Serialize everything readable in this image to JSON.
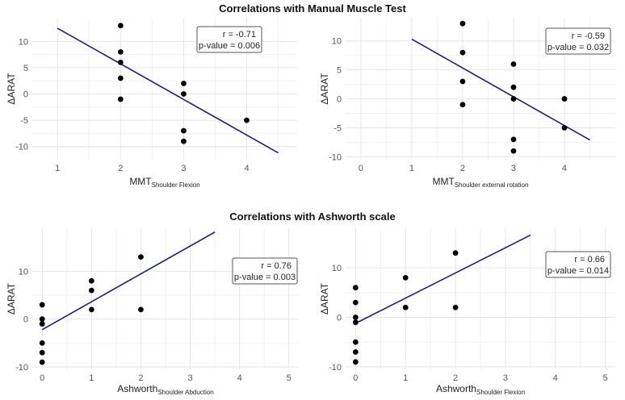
{
  "sections": [
    {
      "title": "Correlations with Manual Muscle Test"
    },
    {
      "title": "Correlations with Ashworth scale"
    }
  ],
  "colors": {
    "line": "#1f1f7a",
    "point": "#000000",
    "grid": "#e6e6e6",
    "box_border": "#555555"
  },
  "chart_data": [
    {
      "type": "scatter",
      "ylabel": "ΔARAT",
      "xlabel_main": "MMT",
      "xlabel_sub": "Shoulder Flexion",
      "xlim": [
        0.6,
        4.8
      ],
      "ylim": [
        -12.5,
        14.5
      ],
      "xticks": [
        1,
        2,
        3,
        4
      ],
      "yticks": [
        -10,
        -5,
        0,
        5,
        10
      ],
      "points": [
        [
          2,
          13
        ],
        [
          2,
          8
        ],
        [
          2,
          6
        ],
        [
          2,
          3
        ],
        [
          2,
          -1
        ],
        [
          3,
          2
        ],
        [
          3,
          0
        ],
        [
          3,
          -7
        ],
        [
          3,
          -9
        ],
        [
          4,
          -5
        ]
      ],
      "fit_line": [
        [
          1,
          12.5
        ],
        [
          4.5,
          -11.2
        ]
      ],
      "annotation": {
        "r": "r = -0.71",
        "p": "p-value = 0.006"
      }
    },
    {
      "type": "scatter",
      "ylabel": "ΔARAT",
      "xlabel_main": "MMT",
      "xlabel_sub": "Shoulder external rotation",
      "xlim": [
        -0.3,
        5.0
      ],
      "ylim": [
        -10.5,
        14.0
      ],
      "xticks": [
        0,
        1,
        2,
        3,
        4
      ],
      "yticks": [
        -10,
        -5,
        0,
        5,
        10
      ],
      "points": [
        [
          2,
          13
        ],
        [
          2,
          8
        ],
        [
          2,
          3
        ],
        [
          2,
          -1
        ],
        [
          3,
          6
        ],
        [
          3,
          2
        ],
        [
          3,
          0
        ],
        [
          3,
          -7
        ],
        [
          3,
          -9
        ],
        [
          4,
          0
        ],
        [
          4,
          -5
        ]
      ],
      "fit_line": [
        [
          1,
          10.3
        ],
        [
          4.5,
          -7.1
        ]
      ],
      "annotation": {
        "r": "r = -0.59",
        "p": "p-value = 0.032"
      }
    },
    {
      "type": "scatter",
      "ylabel": "ΔARAT",
      "xlabel_main": "Ashworth",
      "xlabel_sub": "Shoulder Abduction",
      "xlim": [
        -0.2,
        5.2
      ],
      "ylim": [
        -10.5,
        19.0
      ],
      "xticks": [
        0,
        1,
        2,
        3,
        4,
        5
      ],
      "yticks": [
        -10,
        0,
        10
      ],
      "points": [
        [
          0,
          3
        ],
        [
          0,
          0
        ],
        [
          0,
          -1
        ],
        [
          0,
          -5
        ],
        [
          0,
          -7
        ],
        [
          0,
          -9
        ],
        [
          1,
          8
        ],
        [
          1,
          6
        ],
        [
          1,
          2
        ],
        [
          2,
          13
        ],
        [
          2,
          2
        ]
      ],
      "fit_line": [
        [
          0,
          -2.2
        ],
        [
          3.5,
          18.2
        ]
      ],
      "annotation": {
        "r": "r = 0.76",
        "p": "p-value = 0.003"
      }
    },
    {
      "type": "scatter",
      "ylabel": "ΔARAT",
      "xlabel_main": "Ashworth",
      "xlabel_sub": "Shoulder Flexion",
      "xlim": [
        -0.2,
        5.2
      ],
      "ylim": [
        -10.5,
        18.0
      ],
      "xticks": [
        0,
        1,
        2,
        3,
        4,
        5
      ],
      "yticks": [
        -10,
        0,
        10
      ],
      "points": [
        [
          0,
          6
        ],
        [
          0,
          3
        ],
        [
          0,
          0
        ],
        [
          0,
          -1
        ],
        [
          0,
          -5
        ],
        [
          0,
          -7
        ],
        [
          0,
          -9
        ],
        [
          1,
          8
        ],
        [
          1,
          2
        ],
        [
          2,
          13
        ],
        [
          2,
          2
        ]
      ],
      "fit_line": [
        [
          0,
          -1.2
        ],
        [
          3.5,
          16.6
        ]
      ],
      "annotation": {
        "r": "r = 0.66",
        "p": "p-value = 0.014"
      }
    }
  ]
}
